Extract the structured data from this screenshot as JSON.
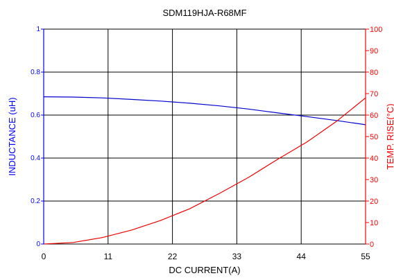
{
  "chart_data": {
    "type": "line",
    "title": "SDM119HJA-R68MF",
    "xlabel": "DC CURRENT(A)",
    "ylabel_left": "INDUCTANCE (uH)",
    "ylabel_right": "TEMP. RISE(°C)",
    "xlim": [
      0,
      55
    ],
    "ylim_left": [
      0,
      1
    ],
    "ylim_right": [
      0,
      100
    ],
    "x_ticks": [
      "0",
      "11",
      "22",
      "33",
      "44",
      "55"
    ],
    "y_left_ticks": [
      "0",
      "0.2",
      "0.4",
      "0.6",
      "0.8",
      "1"
    ],
    "y_right_ticks": [
      "0",
      "10",
      "20",
      "30",
      "40",
      "50",
      "60",
      "70",
      "80",
      "90",
      "100"
    ],
    "grid": "major",
    "colors": {
      "inductance": "#0000cc",
      "temp_rise": "#ee0000",
      "axis_left": "#0000ff",
      "axis_right": "#ff0000",
      "grid": "#000000"
    },
    "series": [
      {
        "axis": "left",
        "color": "#0000cc",
        "x": [
          0,
          5,
          10,
          15,
          20,
          25,
          30,
          35,
          40,
          45,
          50,
          55
        ],
        "y": [
          0.685,
          0.684,
          0.68,
          0.673,
          0.665,
          0.655,
          0.643,
          0.628,
          0.61,
          0.593,
          0.575,
          0.555
        ]
      },
      {
        "axis": "right",
        "color": "#ee0000",
        "x": [
          0,
          5,
          10,
          15,
          20,
          25,
          30,
          35,
          40,
          45,
          50,
          55
        ],
        "y": [
          0,
          0.7,
          3,
          6.5,
          11,
          16.5,
          23.5,
          31,
          39.5,
          47.5,
          57,
          68
        ]
      }
    ]
  }
}
